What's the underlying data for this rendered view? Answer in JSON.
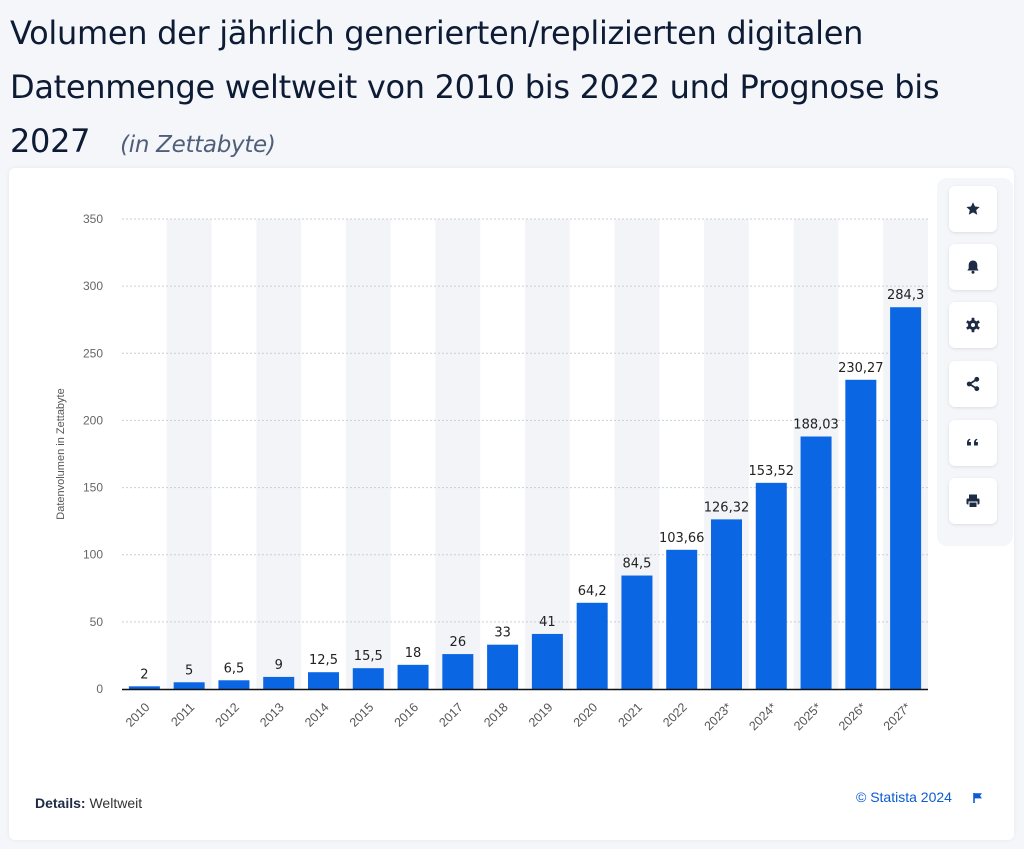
{
  "header": {
    "title": "Volumen der jährlich generierten/replizierten digitalen Datenmenge weltweit von 2010 bis 2022 und Prognose bis 2027",
    "subtitle": "(in Zettabyte)"
  },
  "chart_data": {
    "type": "bar",
    "categories": [
      "2010",
      "2011",
      "2012",
      "2013",
      "2014",
      "2015",
      "2016",
      "2017",
      "2018",
      "2019",
      "2020",
      "2021",
      "2022",
      "2023*",
      "2024*",
      "2025*",
      "2026*",
      "2027*"
    ],
    "values": [
      2,
      5,
      6.5,
      9,
      12.5,
      15.5,
      18,
      26,
      33,
      41,
      64.2,
      84.5,
      103.66,
      126.32,
      153.52,
      188.03,
      230.27,
      284.3
    ],
    "value_labels": [
      "2",
      "5",
      "6,5",
      "9",
      "12,5",
      "15,5",
      "18",
      "26",
      "33",
      "41",
      "64,2",
      "84,5",
      "103,66",
      "126,32",
      "153,52",
      "188,03",
      "230,27",
      "284,3"
    ],
    "yticks": [
      0,
      50,
      100,
      150,
      200,
      250,
      300,
      350
    ],
    "ylim": [
      0,
      350
    ],
    "ylabel": "Datenvolumen in Zettabyte",
    "xlabel": "",
    "grid": true,
    "bar_color": "#0b66e4",
    "band_color": "#f2f4f8"
  },
  "toolbar": {
    "buttons": [
      {
        "name": "favorite-button",
        "icon": "star-icon"
      },
      {
        "name": "notification-button",
        "icon": "bell-icon"
      },
      {
        "name": "settings-button",
        "icon": "gear-icon"
      },
      {
        "name": "share-button",
        "icon": "share-icon"
      },
      {
        "name": "cite-button",
        "icon": "quote-icon"
      },
      {
        "name": "print-button",
        "icon": "printer-icon"
      }
    ]
  },
  "footer": {
    "details_label": "Details:",
    "details_value": "Weltweit",
    "copyright": "© Statista 2024"
  }
}
